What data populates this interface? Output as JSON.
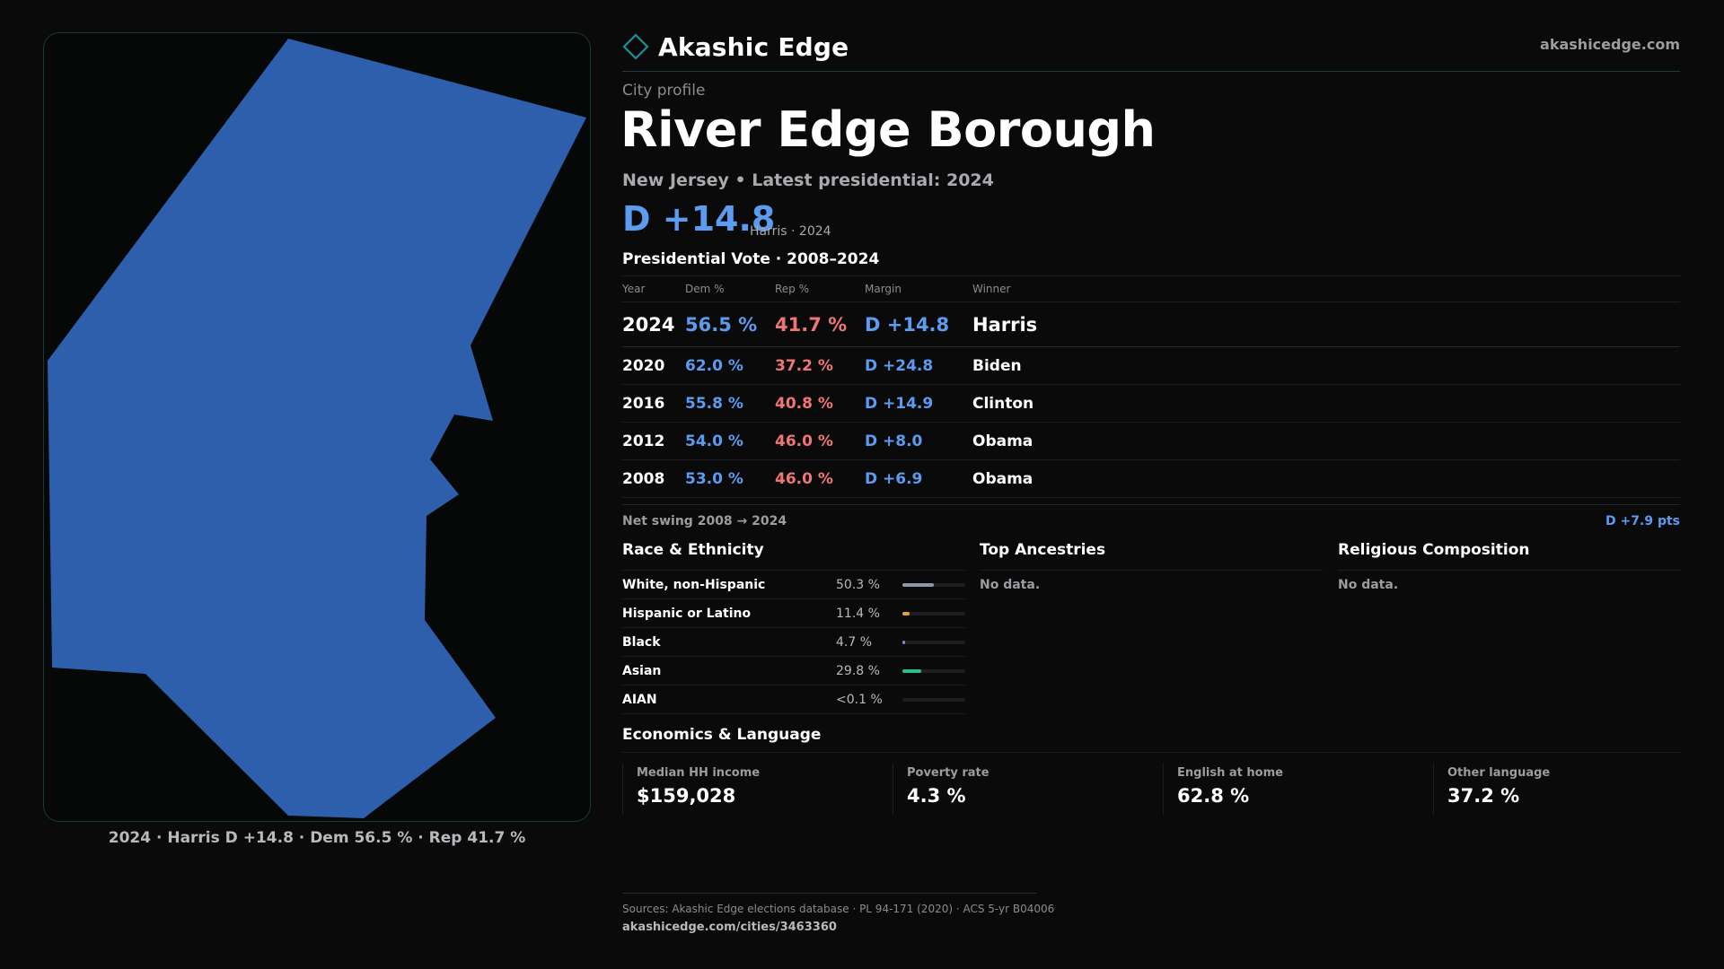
{
  "map": {
    "fill_color": "#2e5fad",
    "caption": "2024 · Harris D +14.8 · Dem 56.5 % · Rep 41.7 %"
  },
  "header": {
    "brand_name": "Akashic Edge",
    "brand_icon": "diamond-logo-icon",
    "site_link": "akashicedge.com",
    "kicker": "City profile",
    "title": "River Edge Borough",
    "subtitle": "New Jersey • Latest presidential: 2024",
    "margin": "D +14.8",
    "margin_note": "Harris · 2024"
  },
  "vote_table": {
    "title": "Presidential Vote · 2008–2024",
    "columns": {
      "year": "Year",
      "dem": "Dem %",
      "rep": "Rep %",
      "margin": "Margin",
      "winner": "Winner"
    },
    "rows": [
      {
        "year": "2024",
        "dem": "56.5 %",
        "rep": "41.7 %",
        "margin": "D +14.8",
        "winner": "Harris"
      },
      {
        "year": "2020",
        "dem": "62.0 %",
        "rep": "37.2 %",
        "margin": "D +24.8",
        "winner": "Biden"
      },
      {
        "year": "2016",
        "dem": "55.8 %",
        "rep": "40.8 %",
        "margin": "D +14.9",
        "winner": "Clinton"
      },
      {
        "year": "2012",
        "dem": "54.0 %",
        "rep": "46.0 %",
        "margin": "D +8.0",
        "winner": "Obama"
      },
      {
        "year": "2008",
        "dem": "53.0 %",
        "rep": "46.0 %",
        "margin": "D +6.9",
        "winner": "Obama"
      }
    ],
    "net_swing_label": "Net swing 2008 → 2024",
    "net_swing_value": "D +7.9 pts"
  },
  "race": {
    "title": "Race & Ethnicity",
    "rows": [
      {
        "label": "White, non-Hispanic",
        "value": "50.3 %",
        "share": 0.503,
        "color": "#8d98a8"
      },
      {
        "label": "Hispanic or Latino",
        "value": "11.4 %",
        "share": 0.114,
        "color": "#e0a23a"
      },
      {
        "label": "Black",
        "value": "4.7 %",
        "share": 0.047,
        "color": "#8b7ee0"
      },
      {
        "label": "Asian",
        "value": "29.8 %",
        "share": 0.298,
        "color": "#2fbf8f"
      },
      {
        "label": "AIAN",
        "value": "<0.1 %",
        "share": 0.0,
        "color": "#8d98a8"
      }
    ]
  },
  "ancestries": {
    "title": "Top Ancestries",
    "empty": "No data."
  },
  "religion": {
    "title": "Religious Composition",
    "empty": "No data."
  },
  "economics": {
    "title": "Economics & Language",
    "cells": [
      {
        "label": "Median HH income",
        "value": "$159,028"
      },
      {
        "label": "Poverty rate",
        "value": "4.3 %"
      },
      {
        "label": "English at home",
        "value": "62.8 %"
      },
      {
        "label": "Other language",
        "value": "37.2 %"
      }
    ]
  },
  "footer": {
    "sources": "Sources: Akashic Edge elections database · PL 94-171 (2020) · ACS 5-yr B04006",
    "url": "akashicedge.com/cities/3463360"
  },
  "colors": {
    "accent_dem": "#5b9bf0",
    "accent_rep": "#f07575",
    "brand_teal": "#1f8f99"
  }
}
